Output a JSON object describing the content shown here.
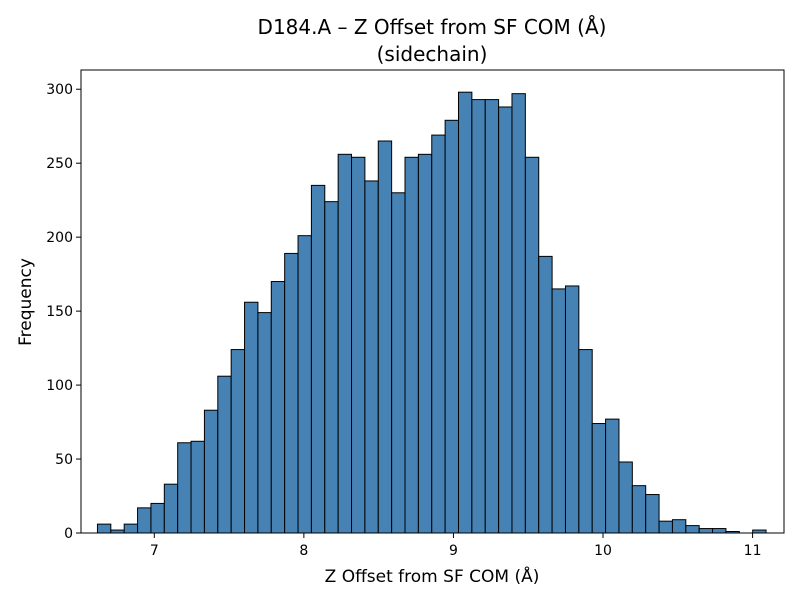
{
  "chart_data": {
    "type": "bar",
    "title": "D184.A – Z Offset from SF COM (Å)",
    "subtitle": "(sidechain)",
    "xlabel": "Z Offset from SF COM (Å)",
    "ylabel": "Frequency",
    "xlim": [
      6.51,
      11.21
    ],
    "ylim": [
      0,
      313
    ],
    "xticks": [
      7,
      8,
      9,
      10,
      11
    ],
    "yticks": [
      0,
      50,
      100,
      150,
      200,
      250,
      300
    ],
    "bin_start": 6.62,
    "bin_width": 0.0894,
    "values": [
      6,
      2,
      6,
      17,
      20,
      33,
      61,
      62,
      83,
      106,
      124,
      156,
      149,
      170,
      189,
      201,
      235,
      224,
      256,
      254,
      238,
      265,
      230,
      254,
      256,
      269,
      279,
      298,
      293,
      293,
      288,
      297,
      254,
      187,
      165,
      167,
      124,
      74,
      77,
      48,
      32,
      26,
      8,
      9,
      5,
      3,
      3,
      1,
      0,
      2
    ],
    "bar_color": "#4682b4",
    "edge_color": "#000000",
    "grid": false,
    "legend": "none"
  }
}
